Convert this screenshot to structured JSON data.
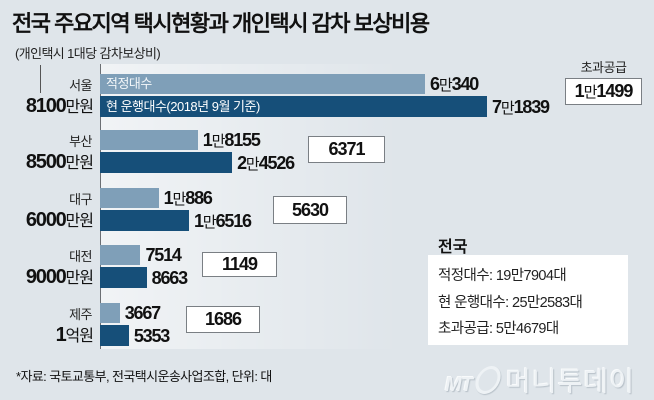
{
  "title": "전국 주요지역 택시현황과 개인택시 감차 보상비용",
  "subtitle": "(개인택시 1대당 감차보상비)",
  "legend": {
    "proper": "적정대수",
    "current": "현 운행대수(2018년 9월 기준)"
  },
  "excess_header": "초과공급",
  "regions": [
    {
      "name": "서울",
      "compensation": "8100만원",
      "proper": "6만340",
      "current": "7만1839",
      "excess": "1만1499"
    },
    {
      "name": "부산",
      "compensation": "8500만원",
      "proper": "1만8155",
      "current": "2만4526",
      "excess": "6371"
    },
    {
      "name": "대구",
      "compensation": "6000만원",
      "proper": "1만886",
      "current": "1만6516",
      "excess": "5630"
    },
    {
      "name": "대전",
      "compensation": "9000만원",
      "proper": "7514",
      "current": "8663",
      "excess": "1149"
    },
    {
      "name": "제주",
      "compensation": "1억원",
      "proper": "3667",
      "current": "5353",
      "excess": "1686"
    }
  ],
  "national": {
    "title": "전국",
    "lines": [
      "적정대수: 19만7904대",
      "현 운행대수: 25만2583대",
      "초과공급: 5만4679대"
    ]
  },
  "footnote": "*자료: 국토교통부, 전국택시운송사업조합, 단위: 대",
  "watermark": {
    "mt": "MT",
    "name": "머니투데이"
  },
  "colors": {
    "background": "#dfe5ea",
    "proper_bar": "#7f9fb8",
    "current_bar": "#164f79"
  },
  "chart_data": {
    "type": "bar",
    "orientation": "horizontal",
    "title": "전국 주요지역 택시현황과 개인택시 감차 보상비용",
    "subtitle": "(개인택시 1대당 감차보상비)",
    "categories": [
      "서울",
      "부산",
      "대구",
      "대전",
      "제주"
    ],
    "category_sublabels": [
      "8100만원",
      "8500만원",
      "6000만원",
      "9000만원",
      "1억원"
    ],
    "series": [
      {
        "name": "적정대수",
        "values": [
          60340,
          18155,
          10886,
          7514,
          3667
        ]
      },
      {
        "name": "현 운행대수(2018년 9월 기준)",
        "values": [
          71839,
          24526,
          16516,
          8663,
          5353
        ]
      },
      {
        "name": "초과공급",
        "values": [
          11499,
          6371,
          5630,
          1149,
          1686
        ]
      }
    ],
    "national_totals": {
      "적정대수": 197904,
      "현 운행대수": 252583,
      "초과공급": 54679
    },
    "unit": "대",
    "source": "국토교통부, 전국택시운송사업조합",
    "xlabel": "",
    "ylabel": "",
    "grid": false,
    "legend_position": "inside-bars"
  }
}
